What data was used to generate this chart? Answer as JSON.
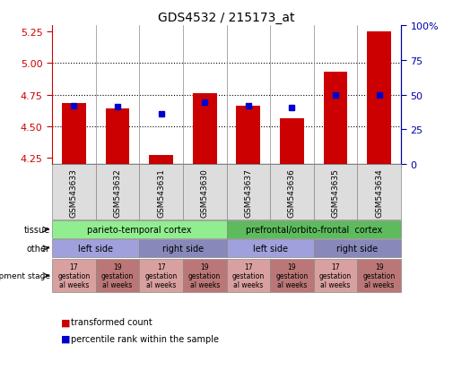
{
  "title": "GDS4532 / 215173_at",
  "samples": [
    "GSM543633",
    "GSM543632",
    "GSM543631",
    "GSM543630",
    "GSM543637",
    "GSM543636",
    "GSM543635",
    "GSM543634"
  ],
  "red_values": [
    4.68,
    4.64,
    4.27,
    4.76,
    4.66,
    4.56,
    4.93,
    5.25
  ],
  "blue_values": [
    4.665,
    4.655,
    4.595,
    4.69,
    4.66,
    4.645,
    4.745,
    4.745
  ],
  "ylim_left": [
    4.2,
    5.3
  ],
  "ylim_right": [
    0,
    100
  ],
  "yticks_left": [
    4.25,
    4.5,
    4.75,
    5.0,
    5.25
  ],
  "yticks_right": [
    0,
    25,
    50,
    75,
    100
  ],
  "tissue_labels": [
    {
      "text": "parieto-temporal cortex",
      "start": 0,
      "end": 3,
      "color": "#90EE90"
    },
    {
      "text": "prefrontal/orbito-frontal  cortex",
      "start": 4,
      "end": 7,
      "color": "#5DBB5D"
    }
  ],
  "other_labels": [
    {
      "text": "left side",
      "start": 0,
      "end": 1,
      "color": "#A0A0DD"
    },
    {
      "text": "right side",
      "start": 2,
      "end": 3,
      "color": "#8888BB"
    },
    {
      "text": "left side",
      "start": 4,
      "end": 5,
      "color": "#A0A0DD"
    },
    {
      "text": "right side",
      "start": 6,
      "end": 7,
      "color": "#8888BB"
    }
  ],
  "dev_labels": [
    {
      "text": "17\ngestation\nal weeks",
      "col": 0,
      "color": "#D9A0A0"
    },
    {
      "text": "19\ngestation\nal weeks",
      "col": 1,
      "color": "#BB7777"
    },
    {
      "text": "17\ngestation\nal weeks",
      "col": 2,
      "color": "#D9A0A0"
    },
    {
      "text": "19\ngestation\nal weeks",
      "col": 3,
      "color": "#BB7777"
    },
    {
      "text": "17\ngestation\nal weeks",
      "col": 4,
      "color": "#D9A0A0"
    },
    {
      "text": "19\ngestation\nal weeks",
      "col": 5,
      "color": "#BB7777"
    },
    {
      "text": "17\ngestation\nal weeks",
      "col": 6,
      "color": "#D9A0A0"
    },
    {
      "text": "19\ngestation\nal weeks",
      "col": 7,
      "color": "#BB7777"
    }
  ],
  "bar_color": "#CC0000",
  "blue_color": "#0000CC",
  "left_axis_color": "#CC0000",
  "right_axis_color": "#0000AA",
  "sample_box_color": "#DDDDDD",
  "chart_bg": "#FFFFFF"
}
